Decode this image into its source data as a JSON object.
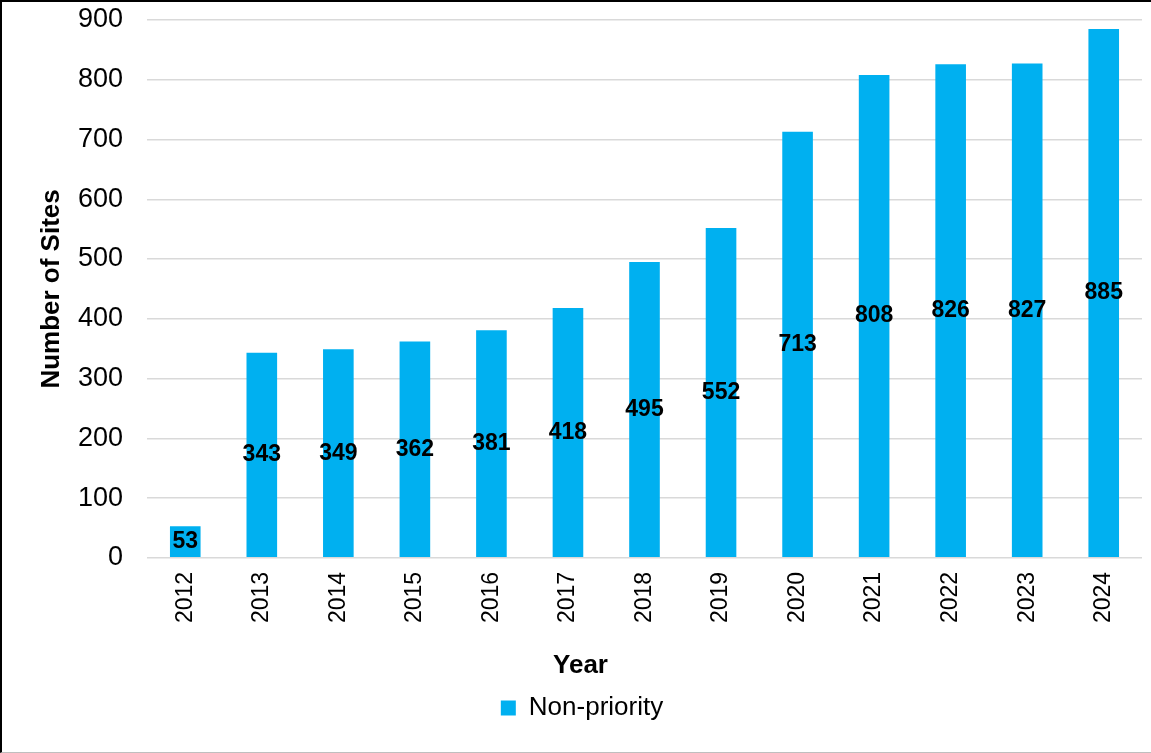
{
  "chart_data": {
    "type": "bar",
    "xlabel": "Year",
    "ylabel": "Number of Sites",
    "categories": [
      "2012",
      "2013",
      "2014",
      "2015",
      "2016",
      "2017",
      "2018",
      "2019",
      "2020",
      "2021",
      "2022",
      "2023",
      "2024"
    ],
    "series": [
      {
        "name": "Non-priority",
        "color": "#00b0f0",
        "values": [
          53,
          343,
          349,
          362,
          381,
          418,
          495,
          552,
          713,
          808,
          826,
          827,
          885
        ]
      }
    ],
    "ylim": [
      0,
      900
    ],
    "yticks": [
      0,
      100,
      200,
      300,
      400,
      500,
      600,
      700,
      800,
      900
    ],
    "grid": "y",
    "legend": "bottom",
    "data_labels": true
  }
}
